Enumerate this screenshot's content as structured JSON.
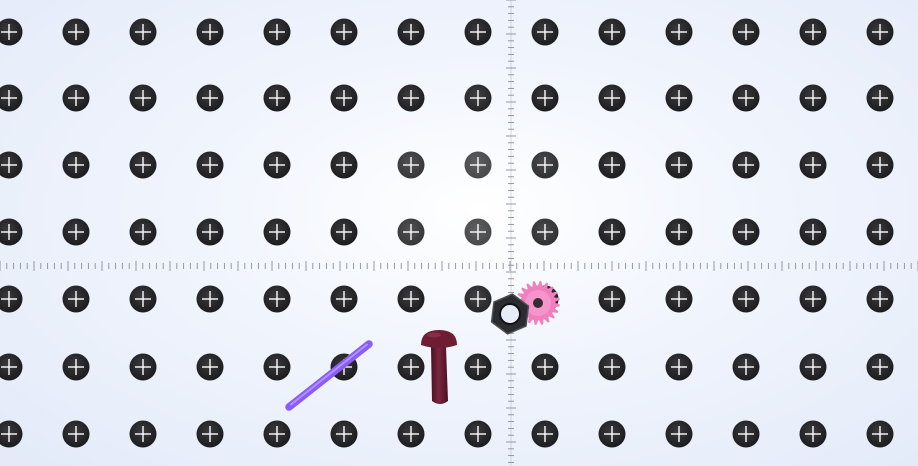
{
  "scene": {
    "background_color": "#e8eefb",
    "pegboard": {
      "rows": 7,
      "columns": 14,
      "hole_color": "#2b2b2e",
      "cross_color": "#ffffff"
    },
    "ruler": {
      "color": "#8a8f98",
      "orientation": [
        "horizontal",
        "vertical"
      ]
    },
    "objects": [
      {
        "name": "purple-rod",
        "type": "rod",
        "color": "#8b5cf6"
      },
      {
        "name": "maroon-rivet",
        "type": "rivet",
        "color": "#6e1e33"
      },
      {
        "name": "hex-nut",
        "type": "hex-nut",
        "color": "#2a2c30"
      },
      {
        "name": "pink-gear",
        "type": "gear",
        "color": "#ef7fbf"
      }
    ]
  }
}
